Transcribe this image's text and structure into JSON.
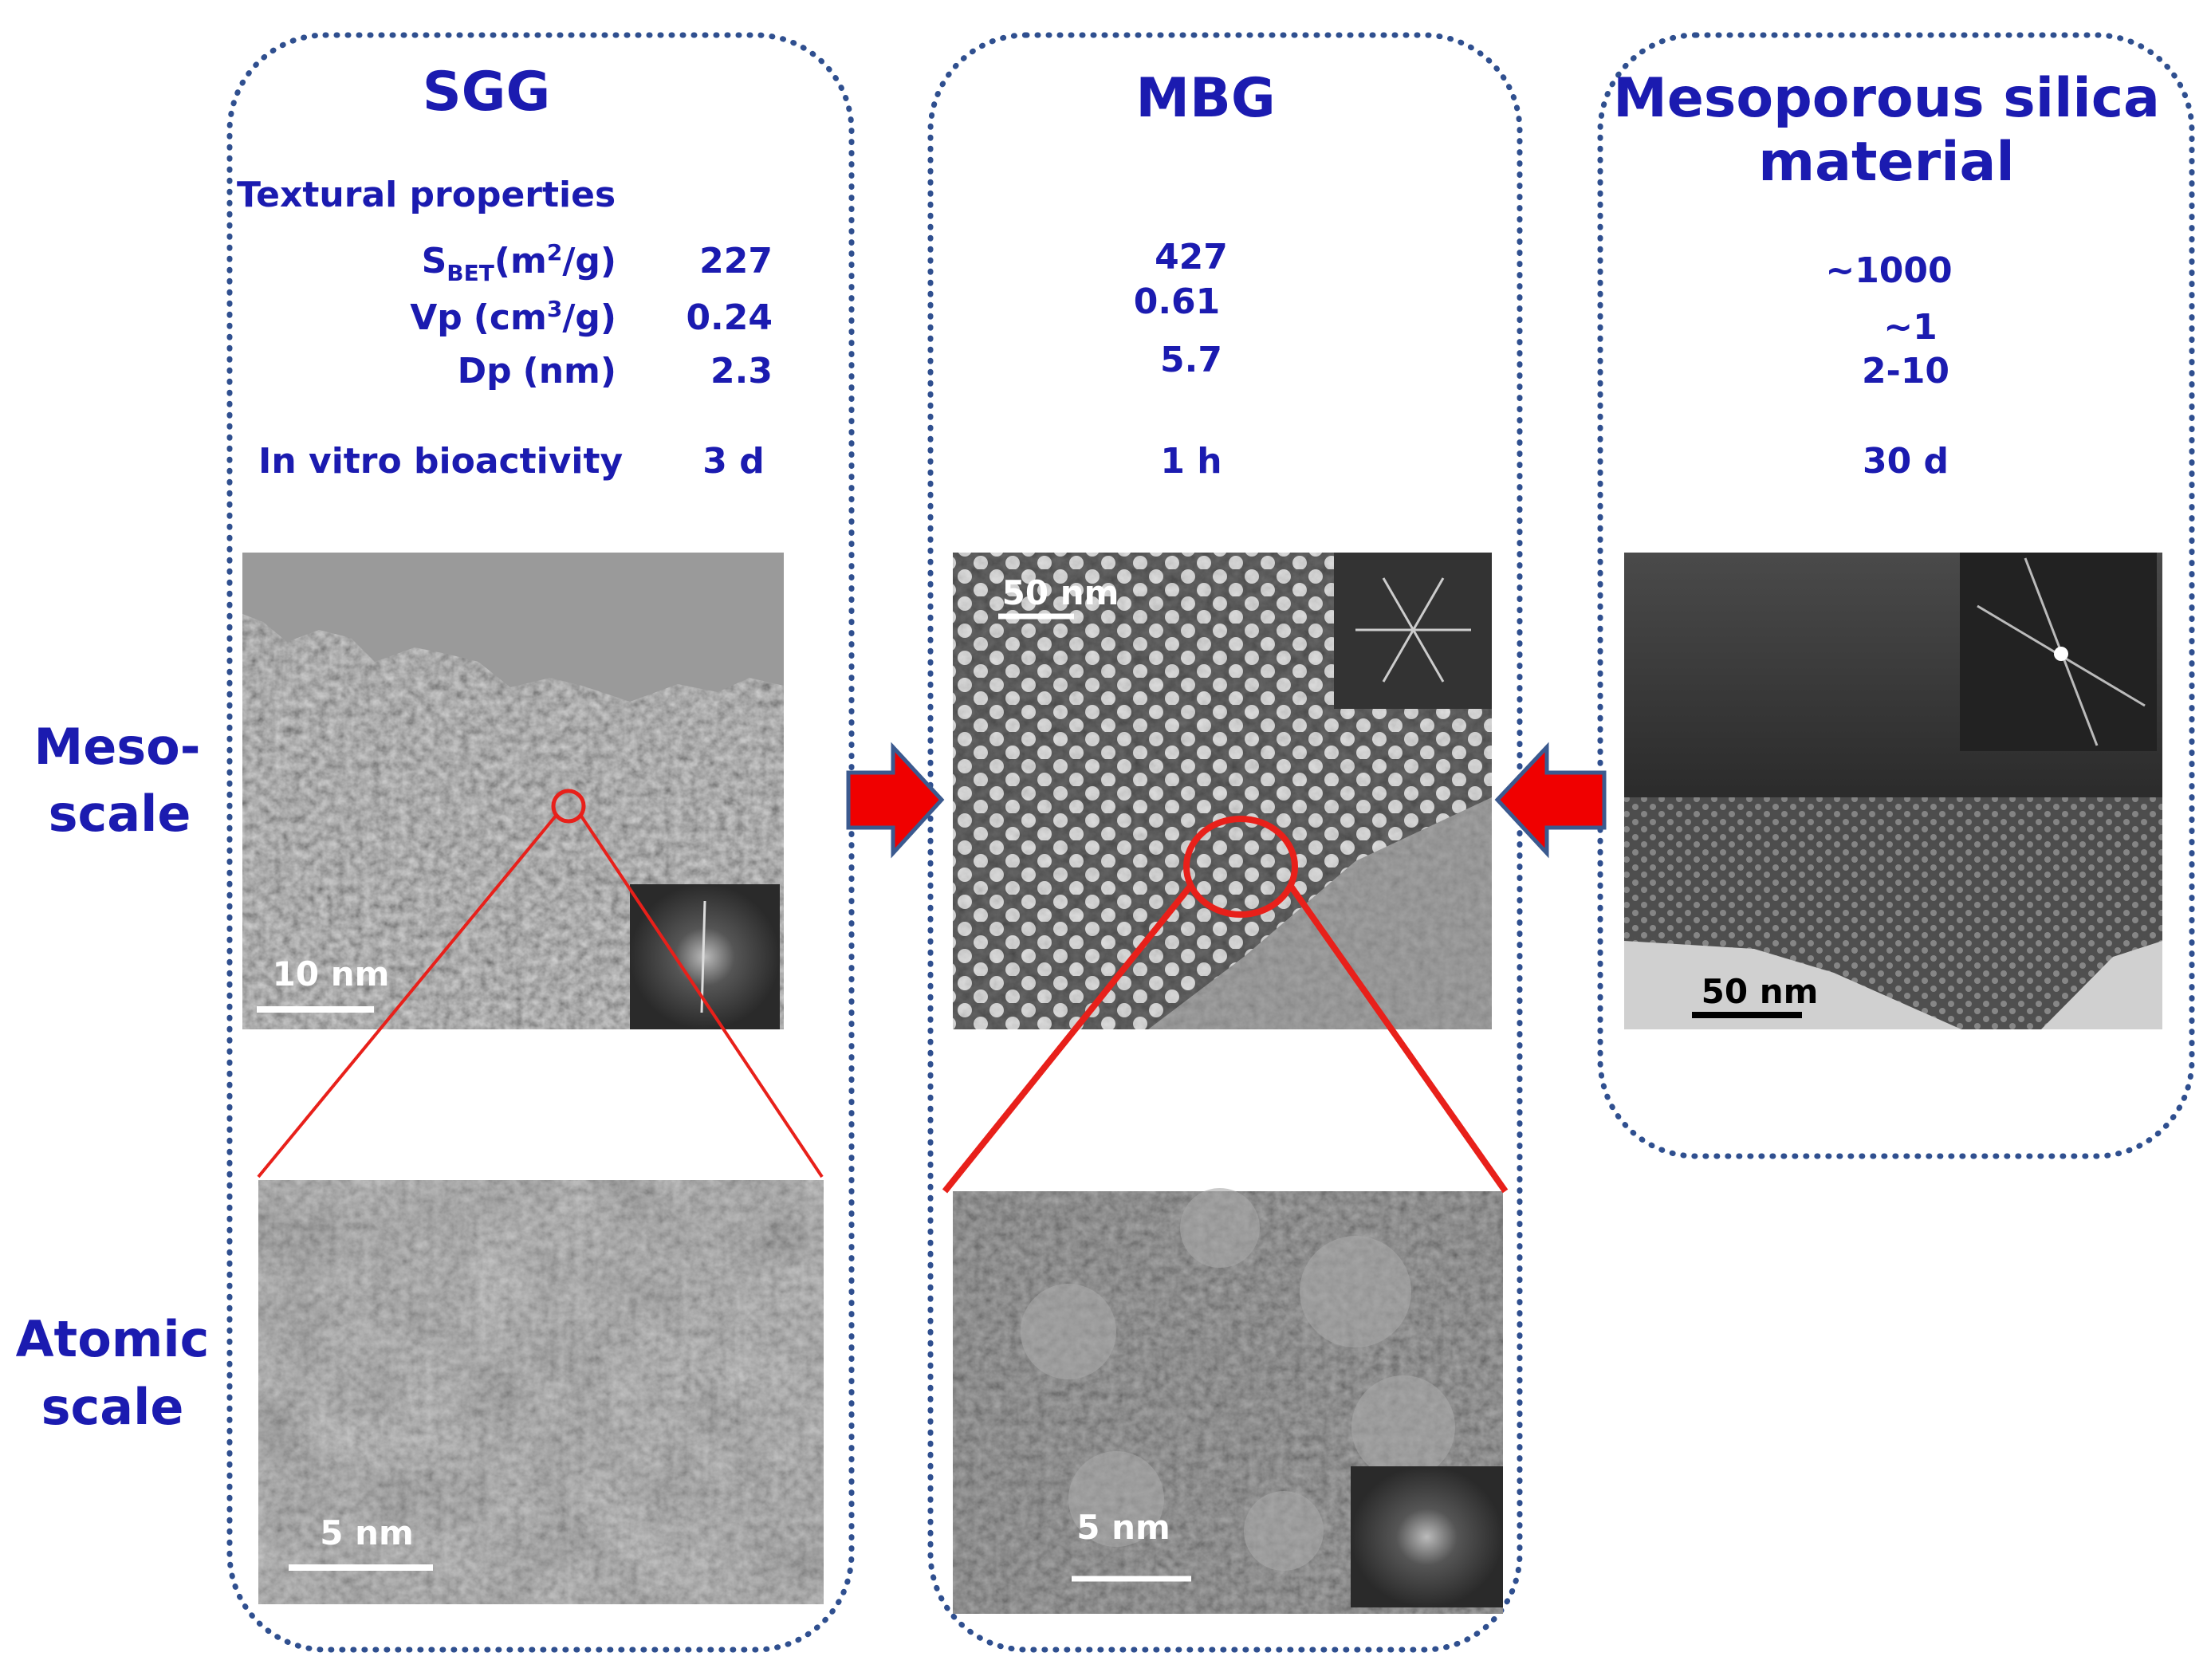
{
  "textural_heading": "Textural properties",
  "property_labels": [
    {
      "symbol": "S",
      "subscript": "BET",
      "unit_start": "(m",
      "superscript": "2",
      "unit_end": "/g)"
    },
    {
      "symbol": "Vp",
      "unit_start": "(cm",
      "superscript": "3",
      "unit_end": "/g)"
    },
    {
      "symbol": "Dp",
      "unit_start": "(nm)"
    }
  ],
  "bioactivity_label": "In vitro bioactivity",
  "scale_labels": [
    [
      "Meso-",
      "scale"
    ],
    [
      "Atomic",
      "scale"
    ]
  ],
  "columns": [
    {
      "title": [
        "SGG"
      ],
      "values": [
        "227",
        "0.24",
        "2.3"
      ],
      "bioactivity": "3 d",
      "meso_scale_bar": "10 nm",
      "atomic_scale_bar": "5 nm"
    },
    {
      "title": [
        "MBG"
      ],
      "values": [
        "427",
        "0.61",
        "5.7"
      ],
      "bioactivity": "1 h",
      "meso_scale_bar": "50 nm",
      "atomic_scale_bar": "5 nm"
    },
    {
      "title": [
        "Mesoporous silica",
        "material"
      ],
      "values": [
        "~1000",
        "~1",
        "2-10"
      ],
      "bioactivity": "30 d",
      "meso_scale_bar": "50 nm"
    }
  ]
}
